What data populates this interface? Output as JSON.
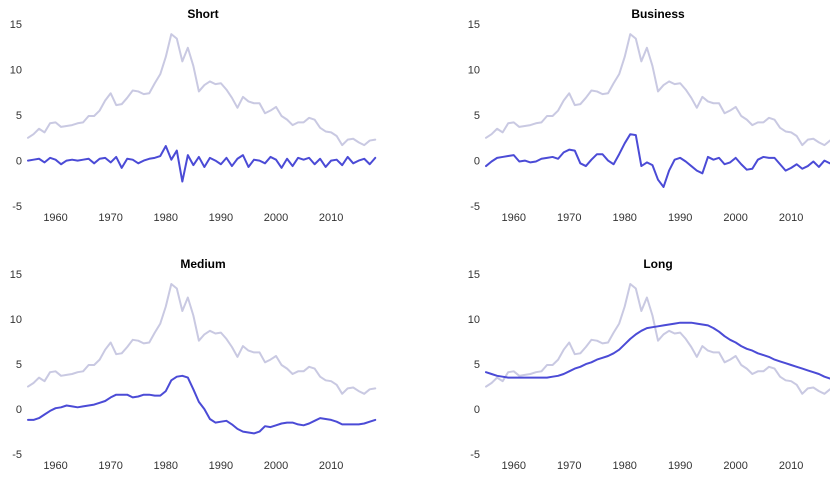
{
  "chart_data": [
    {
      "type": "line",
      "title": "Short",
      "x": [
        1955,
        1956,
        1957,
        1958,
        1959,
        1960,
        1961,
        1962,
        1963,
        1964,
        1965,
        1966,
        1967,
        1968,
        1969,
        1970,
        1971,
        1972,
        1973,
        1974,
        1975,
        1976,
        1977,
        1978,
        1979,
        1980,
        1981,
        1982,
        1983,
        1984,
        1985,
        1986,
        1987,
        1988,
        1989,
        1990,
        1991,
        1992,
        1993,
        1994,
        1995,
        1996,
        1997,
        1998,
        1999,
        2000,
        2001,
        2002,
        2003,
        2004,
        2005,
        2006,
        2007,
        2008,
        2009,
        2010,
        2011,
        2012,
        2013,
        2014,
        2015,
        2016,
        2017,
        2018
      ],
      "series": [
        {
          "color": "#c9c9e2",
          "values": [
            2.6,
            3.0,
            3.6,
            3.2,
            4.2,
            4.3,
            3.8,
            3.9,
            4.0,
            4.2,
            4.3,
            5.0,
            5.0,
            5.6,
            6.7,
            7.5,
            6.2,
            6.3,
            7.0,
            7.8,
            7.7,
            7.4,
            7.5,
            8.6,
            9.6,
            11.5,
            14.0,
            13.5,
            11.0,
            12.5,
            10.5,
            7.7,
            8.4,
            8.8,
            8.5,
            8.6,
            7.9,
            7.0,
            5.9,
            7.1,
            6.6,
            6.4,
            6.4,
            5.3,
            5.6,
            6.0,
            5.0,
            4.6,
            4.0,
            4.3,
            4.3,
            4.8,
            4.6,
            3.7,
            3.3,
            3.2,
            2.8,
            1.8,
            2.4,
            2.5,
            2.1,
            1.8,
            2.3,
            2.4
          ]
        },
        {
          "color": "#4b4bd6",
          "values": [
            0.1,
            0.2,
            0.3,
            -0.1,
            0.4,
            0.2,
            -0.3,
            0.1,
            0.2,
            0.1,
            0.2,
            0.3,
            -0.2,
            0.3,
            0.4,
            -0.1,
            0.5,
            -0.7,
            0.3,
            0.2,
            -0.2,
            0.1,
            0.3,
            0.4,
            0.6,
            1.7,
            0.2,
            1.2,
            -2.2,
            0.7,
            -0.4,
            0.5,
            -0.6,
            0.4,
            0.1,
            -0.3,
            0.4,
            -0.5,
            0.3,
            0.7,
            -0.6,
            0.2,
            0.1,
            -0.2,
            0.5,
            0.2,
            -0.7,
            0.3,
            -0.5,
            0.4,
            0.2,
            0.4,
            -0.3,
            0.3,
            -0.6,
            0.1,
            0.2,
            -0.4,
            0.5,
            -0.2,
            0.1,
            0.3,
            -0.3,
            0.4
          ]
        }
      ],
      "xlim": [
        1955,
        2018.5
      ],
      "xticks": [
        1960,
        1970,
        1980,
        1990,
        2000,
        2010
      ],
      "ylim": [
        -5,
        15
      ],
      "yticks": [
        -5,
        0,
        5,
        10,
        15
      ]
    },
    {
      "type": "line",
      "title": "Business",
      "x": [
        1955,
        1956,
        1957,
        1958,
        1959,
        1960,
        1961,
        1962,
        1963,
        1964,
        1965,
        1966,
        1967,
        1968,
        1969,
        1970,
        1971,
        1972,
        1973,
        1974,
        1975,
        1976,
        1977,
        1978,
        1979,
        1980,
        1981,
        1982,
        1983,
        1984,
        1985,
        1986,
        1987,
        1988,
        1989,
        1990,
        1991,
        1992,
        1993,
        1994,
        1995,
        1996,
        1997,
        1998,
        1999,
        2000,
        2001,
        2002,
        2003,
        2004,
        2005,
        2006,
        2007,
        2008,
        2009,
        2010,
        2011,
        2012,
        2013,
        2014,
        2015,
        2016,
        2017
      ],
      "series": [
        {
          "color": "#c9c9e2",
          "values": [
            2.6,
            3.0,
            3.6,
            3.2,
            4.2,
            4.3,
            3.8,
            3.9,
            4.0,
            4.2,
            4.3,
            5.0,
            5.0,
            5.6,
            6.7,
            7.5,
            6.2,
            6.3,
            7.0,
            7.8,
            7.7,
            7.4,
            7.5,
            8.6,
            9.6,
            11.5,
            14.0,
            13.5,
            11.0,
            12.5,
            10.5,
            7.7,
            8.4,
            8.8,
            8.5,
            8.6,
            7.9,
            7.0,
            5.9,
            7.1,
            6.6,
            6.4,
            6.4,
            5.3,
            5.6,
            6.0,
            5.0,
            4.6,
            4.0,
            4.3,
            4.3,
            4.8,
            4.6,
            3.7,
            3.3,
            3.2,
            2.8,
            1.8,
            2.4,
            2.5,
            2.1,
            1.8,
            2.3
          ]
        },
        {
          "color": "#4b4bd6",
          "values": [
            -0.5,
            0,
            0.4,
            0.5,
            0.6,
            0.7,
            0,
            0.1,
            -0.1,
            0,
            0.3,
            0.4,
            0.5,
            0.3,
            1.0,
            1.3,
            1.2,
            -0.2,
            -0.5,
            0.2,
            0.8,
            0.8,
            0.1,
            -0.3,
            0.8,
            2.0,
            3.0,
            2.9,
            -0.5,
            -0.1,
            -0.4,
            -2.0,
            -2.8,
            -1.0,
            0.2,
            0.4,
            0,
            -0.5,
            -1.0,
            -1.3,
            0.5,
            0.2,
            0.4,
            -0.3,
            -0.1,
            0.4,
            -0.3,
            -0.9,
            -0.8,
            0.2,
            0.5,
            0.4,
            0.4,
            -0.3,
            -1.0,
            -0.7,
            -0.3,
            -0.8,
            -0.5,
            0,
            -0.6,
            0.1,
            -0.2
          ]
        }
      ],
      "xlim": [
        1955,
        2017
      ],
      "xticks": [
        1960,
        1970,
        1980,
        1990,
        2000,
        2010
      ],
      "ylim": [
        -5,
        15
      ],
      "yticks": [
        -5,
        0,
        5,
        10,
        15
      ]
    },
    {
      "type": "line",
      "title": "Medium",
      "x": [
        1955,
        1956,
        1957,
        1958,
        1959,
        1960,
        1961,
        1962,
        1963,
        1964,
        1965,
        1966,
        1967,
        1968,
        1969,
        1970,
        1971,
        1972,
        1973,
        1974,
        1975,
        1976,
        1977,
        1978,
        1979,
        1980,
        1981,
        1982,
        1983,
        1984,
        1985,
        1986,
        1987,
        1988,
        1989,
        1990,
        1991,
        1992,
        1993,
        1994,
        1995,
        1996,
        1997,
        1998,
        1999,
        2000,
        2001,
        2002,
        2003,
        2004,
        2005,
        2006,
        2007,
        2008,
        2009,
        2010,
        2011,
        2012,
        2013,
        2014,
        2015,
        2016,
        2017,
        2018
      ],
      "series": [
        {
          "color": "#c9c9e2",
          "values": [
            2.6,
            3.0,
            3.6,
            3.2,
            4.2,
            4.3,
            3.8,
            3.9,
            4.0,
            4.2,
            4.3,
            5.0,
            5.0,
            5.6,
            6.7,
            7.5,
            6.2,
            6.3,
            7.0,
            7.8,
            7.7,
            7.4,
            7.5,
            8.6,
            9.6,
            11.5,
            14.0,
            13.5,
            11.0,
            12.5,
            10.5,
            7.7,
            8.4,
            8.8,
            8.5,
            8.6,
            7.9,
            7.0,
            5.9,
            7.1,
            6.6,
            6.4,
            6.4,
            5.3,
            5.6,
            6.0,
            5.0,
            4.6,
            4.0,
            4.3,
            4.3,
            4.8,
            4.6,
            3.7,
            3.3,
            3.2,
            2.8,
            1.8,
            2.4,
            2.5,
            2.1,
            1.8,
            2.3,
            2.4
          ]
        },
        {
          "color": "#4b4bd6",
          "values": [
            -1.1,
            -1.1,
            -0.9,
            -0.5,
            -0.1,
            0.2,
            0.3,
            0.5,
            0.4,
            0.3,
            0.4,
            0.5,
            0.6,
            0.8,
            1.0,
            1.4,
            1.7,
            1.7,
            1.7,
            1.4,
            1.5,
            1.7,
            1.7,
            1.6,
            1.6,
            2.1,
            3.3,
            3.7,
            3.8,
            3.6,
            2.3,
            0.9,
            0.1,
            -1.0,
            -1.4,
            -1.3,
            -1.2,
            -1.6,
            -2.1,
            -2.4,
            -2.5,
            -2.6,
            -2.4,
            -1.8,
            -1.9,
            -1.7,
            -1.5,
            -1.4,
            -1.4,
            -1.6,
            -1.7,
            -1.5,
            -1.2,
            -0.9,
            -1.0,
            -1.1,
            -1.3,
            -1.6,
            -1.6,
            -1.6,
            -1.6,
            -1.5,
            -1.3,
            -1.1
          ]
        }
      ],
      "xlim": [
        1955,
        2018.5
      ],
      "xticks": [
        1960,
        1970,
        1980,
        1990,
        2000,
        2010
      ],
      "ylim": [
        -5,
        15
      ],
      "yticks": [
        -5,
        0,
        5,
        10,
        15
      ]
    },
    {
      "type": "line",
      "title": "Long",
      "x": [
        1955,
        1956,
        1957,
        1958,
        1959,
        1960,
        1961,
        1962,
        1963,
        1964,
        1965,
        1966,
        1967,
        1968,
        1969,
        1970,
        1971,
        1972,
        1973,
        1974,
        1975,
        1976,
        1977,
        1978,
        1979,
        1980,
        1981,
        1982,
        1983,
        1984,
        1985,
        1986,
        1987,
        1988,
        1989,
        1990,
        1991,
        1992,
        1993,
        1994,
        1995,
        1996,
        1997,
        1998,
        1999,
        2000,
        2001,
        2002,
        2003,
        2004,
        2005,
        2006,
        2007,
        2008,
        2009,
        2010,
        2011,
        2012,
        2013,
        2014,
        2015,
        2016,
        2017
      ],
      "series": [
        {
          "color": "#c9c9e2",
          "values": [
            2.6,
            3.0,
            3.6,
            3.2,
            4.2,
            4.3,
            3.8,
            3.9,
            4.0,
            4.2,
            4.3,
            5.0,
            5.0,
            5.6,
            6.7,
            7.5,
            6.2,
            6.3,
            7.0,
            7.8,
            7.7,
            7.4,
            7.5,
            8.6,
            9.6,
            11.5,
            14.0,
            13.5,
            11.0,
            12.5,
            10.5,
            7.7,
            8.4,
            8.8,
            8.5,
            8.6,
            7.9,
            7.0,
            5.9,
            7.1,
            6.6,
            6.4,
            6.4,
            5.3,
            5.6,
            6.0,
            5.0,
            4.6,
            4.0,
            4.3,
            4.3,
            4.8,
            4.6,
            3.7,
            3.3,
            3.2,
            2.8,
            1.8,
            2.4,
            2.5,
            2.1,
            1.8,
            2.3
          ]
        },
        {
          "color": "#4b4bd6",
          "values": [
            4.2,
            4.0,
            3.8,
            3.7,
            3.6,
            3.6,
            3.6,
            3.6,
            3.6,
            3.6,
            3.6,
            3.6,
            3.7,
            3.8,
            4.0,
            4.3,
            4.6,
            4.8,
            5.1,
            5.3,
            5.6,
            5.8,
            6.0,
            6.3,
            6.7,
            7.3,
            7.9,
            8.4,
            8.8,
            9.1,
            9.2,
            9.3,
            9.4,
            9.5,
            9.6,
            9.7,
            9.7,
            9.7,
            9.6,
            9.5,
            9.4,
            9.1,
            8.7,
            8.2,
            7.8,
            7.5,
            7.1,
            6.8,
            6.6,
            6.3,
            6.1,
            5.9,
            5.6,
            5.4,
            5.2,
            5.0,
            4.8,
            4.6,
            4.4,
            4.2,
            4.0,
            3.7,
            3.5
          ]
        }
      ],
      "xlim": [
        1955,
        2017
      ],
      "xticks": [
        1960,
        1970,
        1980,
        1990,
        2000,
        2010
      ],
      "ylim": [
        -5,
        15
      ],
      "yticks": [
        -5,
        0,
        5,
        10,
        15
      ]
    }
  ]
}
